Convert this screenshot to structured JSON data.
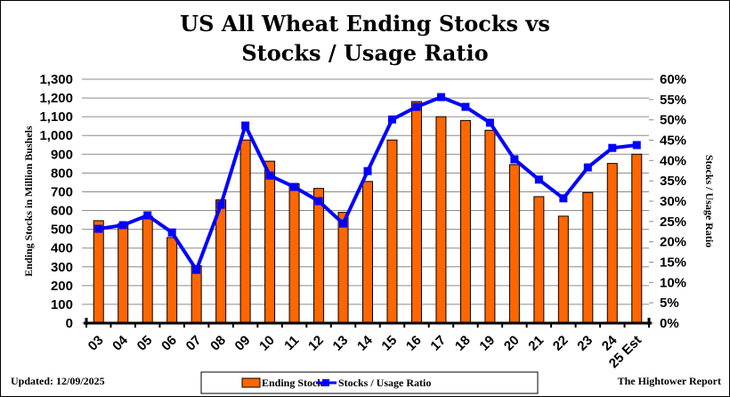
{
  "chart_data": {
    "type": "bar",
    "title_lines": [
      "US All Wheat Ending Stocks vs",
      "Stocks / Usage Ratio"
    ],
    "categories": [
      "03",
      "04",
      "05",
      "06",
      "07",
      "08",
      "09",
      "10",
      "11",
      "12",
      "13",
      "14",
      "15",
      "16",
      "17",
      "18",
      "19",
      "20",
      "21",
      "22",
      "23",
      "24",
      "25 Est"
    ],
    "series": [
      {
        "name": "Ending Stocks",
        "type": "bar",
        "axis": "left",
        "color": "#FF6600",
        "values": [
          546,
          530,
          570,
          456,
          306,
          657,
          976,
          863,
          743,
          718,
          590,
          755,
          976,
          1181,
          1100,
          1080,
          1028,
          845,
          674,
          570,
          696,
          851,
          900
        ]
      },
      {
        "name": "Stocks / Usage Ratio",
        "type": "line",
        "axis": "right",
        "color": "#0000FF",
        "values": [
          23.2,
          24.1,
          26.5,
          22.3,
          13.1,
          29.1,
          48.6,
          36.3,
          33.5,
          30.0,
          24.5,
          37.4,
          50.1,
          53.2,
          55.6,
          53.2,
          49.3,
          40.3,
          35.3,
          30.7,
          38.3,
          43.1,
          43.8
        ]
      }
    ],
    "ylabel": "Ending Stocks in Million Bushels",
    "y2label": "Stocks / Usage Ratio",
    "ylim": [
      0,
      1300
    ],
    "y2lim": [
      0,
      60
    ],
    "yticks": [
      "0",
      "100",
      "200",
      "300",
      "400",
      "500",
      "600",
      "700",
      "800",
      "900",
      "1,000",
      "1,100",
      "1,200",
      "1,300"
    ],
    "y2ticks": [
      "0%",
      "5%",
      "10%",
      "15%",
      "20%",
      "25%",
      "30%",
      "35%",
      "40%",
      "45%",
      "50%",
      "55%",
      "60%"
    ],
    "grid": true,
    "legend": "bottom-center"
  },
  "footer": {
    "updated": "Updated:  12/09/2025",
    "source": "The Hightower Report"
  }
}
